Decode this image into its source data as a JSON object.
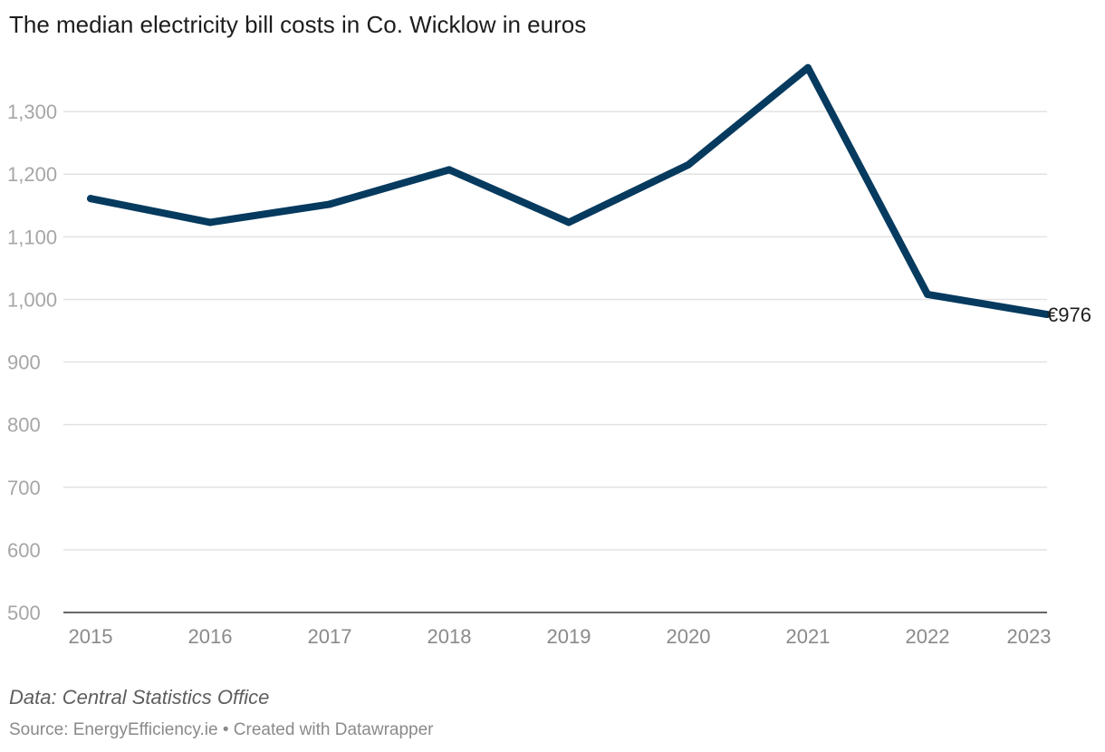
{
  "chart_data": {
    "type": "line",
    "title": "The median electricity bill costs in Co. Wicklow in euros",
    "xlabel": "",
    "ylabel": "",
    "categories": [
      "2015",
      "2016",
      "2017",
      "2018",
      "2019",
      "2020",
      "2021",
      "2022",
      "2023"
    ],
    "series": [
      {
        "name": "Median electricity bill (€)",
        "values": [
          1161,
          1123,
          1152,
          1207,
          1123,
          1215,
          1370,
          1008,
          976
        ]
      }
    ],
    "ylim": [
      500,
      1400
    ],
    "yticks": [
      500,
      600,
      700,
      800,
      900,
      1000,
      1100,
      1200,
      1300
    ],
    "ytick_labels": [
      "500",
      "600",
      "700",
      "800",
      "900",
      "1,000",
      "1,100",
      "1,200",
      "1,300"
    ],
    "end_label": "€976",
    "grid": true,
    "line_color": "#063a5e",
    "grid_color": "#e2e2e2",
    "tick_label_color": "#a6a6a6",
    "xtick_label_color": "#8a8a8a",
    "baseline_color": "#333333",
    "end_label_color": "#1d1d1d"
  },
  "footer": {
    "data_note": "Data: Central Statistics Office",
    "source_note": "Source: EnergyEfficiency.ie • Created with Datawrapper"
  }
}
